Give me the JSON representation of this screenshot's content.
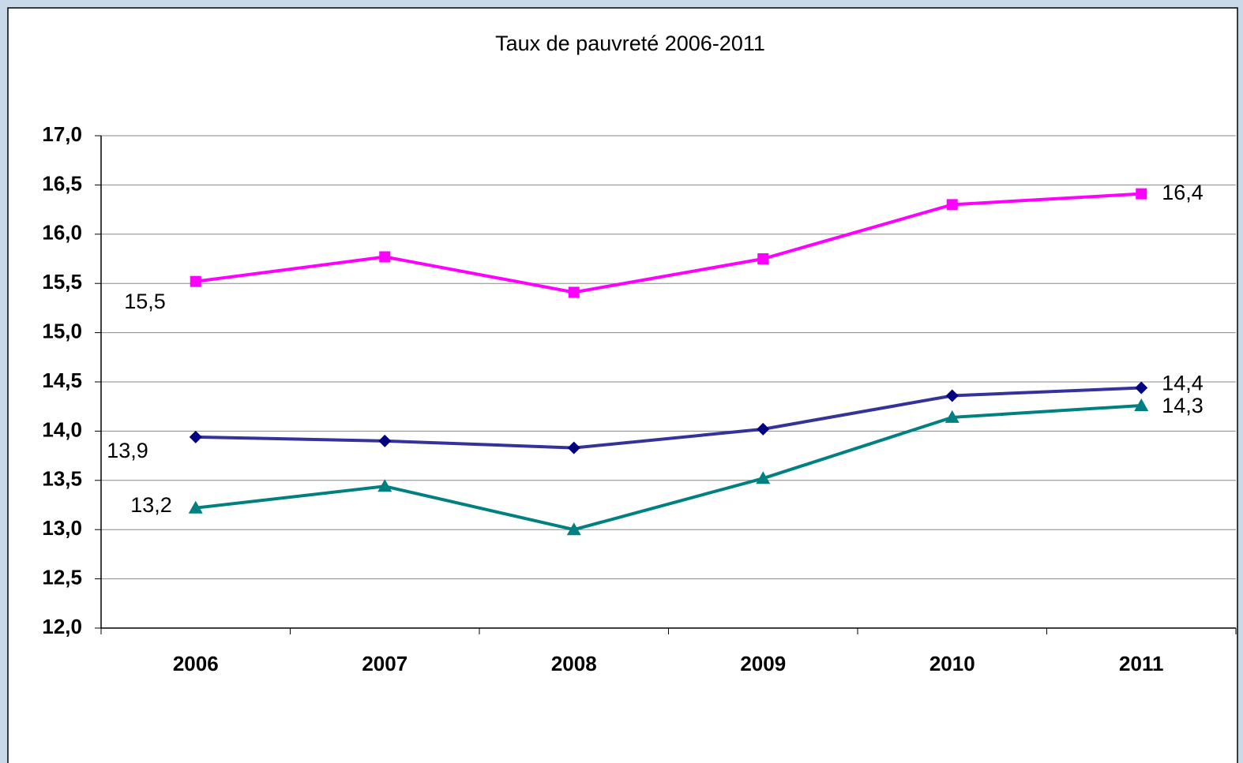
{
  "chart_data": {
    "type": "line",
    "title": "Taux de pauvreté 2006-2011",
    "categories": [
      "2006",
      "2007",
      "2008",
      "2009",
      "2010",
      "2011"
    ],
    "series": [
      {
        "color": "#ff00ff",
        "marker": "square",
        "values": [
          15.52,
          15.77,
          15.41,
          15.75,
          16.3,
          16.41
        ],
        "value_labels": [
          "15,5",
          null,
          null,
          null,
          null,
          "16,4"
        ]
      },
      {
        "color": "#333399",
        "marker": "diamond",
        "values": [
          13.94,
          13.9,
          13.83,
          14.02,
          14.36,
          14.44
        ],
        "value_labels": [
          "13,9",
          null,
          null,
          null,
          null,
          "14,4"
        ]
      },
      {
        "color": "#008080",
        "marker": "triangle",
        "values": [
          13.22,
          13.44,
          13.0,
          13.52,
          14.14,
          14.26
        ],
        "value_labels": [
          "13,2",
          null,
          null,
          null,
          null,
          "14,3"
        ]
      }
    ],
    "ylim": [
      12,
      17
    ],
    "yticks": [
      {
        "value": 12,
        "label": "12,0"
      },
      {
        "value": 12.5,
        "label": "12,5"
      },
      {
        "value": 13,
        "label": "13,0"
      },
      {
        "value": 13.5,
        "label": "13,5"
      },
      {
        "value": 14,
        "label": "14,0"
      },
      {
        "value": 14.5,
        "label": "14,5"
      },
      {
        "value": 15,
        "label": "15,0"
      },
      {
        "value": 15.5,
        "label": "15,5"
      },
      {
        "value": 16,
        "label": "16,0"
      },
      {
        "value": 16.5,
        "label": "16,5"
      },
      {
        "value": 17,
        "label": "17,0"
      }
    ],
    "grid": true
  }
}
